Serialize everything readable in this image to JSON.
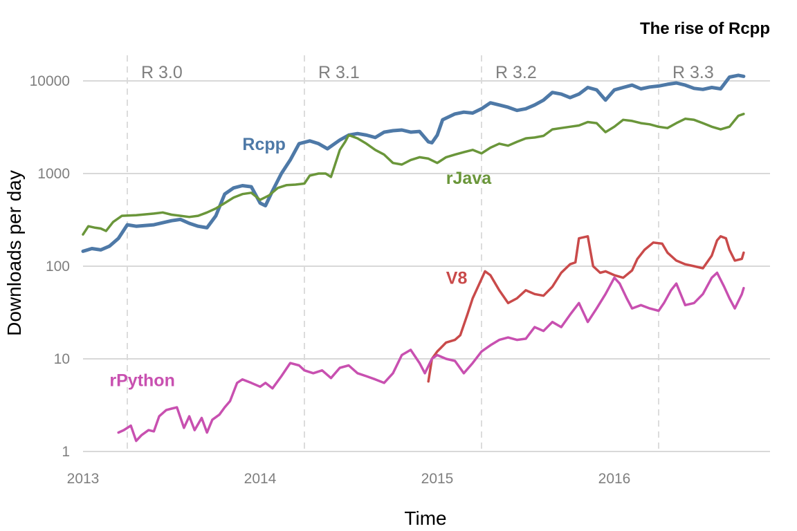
{
  "chart_data": {
    "type": "line",
    "title": "The rise of Rcpp",
    "xlabel": "Time",
    "ylabel": "Downloads per day",
    "y_scale": "log10",
    "ylim": [
      1,
      14000
    ],
    "xlim": [
      2013.0,
      2016.73
    ],
    "y_ticks": [
      {
        "value": 1,
        "label": "1"
      },
      {
        "value": 10,
        "label": "10"
      },
      {
        "value": 100,
        "label": "100"
      },
      {
        "value": 1000,
        "label": "1000"
      },
      {
        "value": 10000,
        "label": "10000"
      }
    ],
    "x_ticks": [
      {
        "value": 2013,
        "label": "2013"
      },
      {
        "value": 2014,
        "label": "2014"
      },
      {
        "value": 2015,
        "label": "2015"
      },
      {
        "value": 2016,
        "label": "2016"
      }
    ],
    "releases": [
      {
        "x": 2013.25,
        "label": "R 3.0"
      },
      {
        "x": 2014.25,
        "label": "R 3.1"
      },
      {
        "x": 2015.25,
        "label": "R 3.2"
      },
      {
        "x": 2016.25,
        "label": "R 3.3"
      }
    ],
    "series": [
      {
        "name": "Rcpp",
        "color": "#4e79a7",
        "width": 5,
        "label_at": {
          "x": 2013.9,
          "y": 2100
        },
        "points": [
          [
            2013.0,
            145
          ],
          [
            2013.05,
            155
          ],
          [
            2013.1,
            150
          ],
          [
            2013.15,
            165
          ],
          [
            2013.2,
            200
          ],
          [
            2013.25,
            280
          ],
          [
            2013.3,
            270
          ],
          [
            2013.4,
            280
          ],
          [
            2013.5,
            310
          ],
          [
            2013.55,
            320
          ],
          [
            2013.6,
            290
          ],
          [
            2013.65,
            270
          ],
          [
            2013.7,
            260
          ],
          [
            2013.75,
            350
          ],
          [
            2013.8,
            600
          ],
          [
            2013.85,
            700
          ],
          [
            2013.9,
            740
          ],
          [
            2013.95,
            720
          ],
          [
            2014.0,
            480
          ],
          [
            2014.03,
            450
          ],
          [
            2014.07,
            650
          ],
          [
            2014.12,
            1000
          ],
          [
            2014.17,
            1400
          ],
          [
            2014.22,
            2100
          ],
          [
            2014.28,
            2250
          ],
          [
            2014.33,
            2100
          ],
          [
            2014.38,
            1850
          ],
          [
            2014.45,
            2300
          ],
          [
            2014.5,
            2600
          ],
          [
            2014.55,
            2700
          ],
          [
            2014.6,
            2600
          ],
          [
            2014.65,
            2450
          ],
          [
            2014.7,
            2800
          ],
          [
            2014.75,
            2900
          ],
          [
            2014.8,
            2950
          ],
          [
            2014.85,
            2800
          ],
          [
            2014.9,
            2850
          ],
          [
            2014.95,
            2200
          ],
          [
            2014.97,
            2150
          ],
          [
            2015.0,
            2600
          ],
          [
            2015.03,
            3800
          ],
          [
            2015.1,
            4400
          ],
          [
            2015.15,
            4600
          ],
          [
            2015.2,
            4500
          ],
          [
            2015.25,
            5000
          ],
          [
            2015.3,
            5800
          ],
          [
            2015.35,
            5500
          ],
          [
            2015.4,
            5200
          ],
          [
            2015.45,
            4800
          ],
          [
            2015.5,
            5000
          ],
          [
            2015.55,
            5500
          ],
          [
            2015.6,
            6200
          ],
          [
            2015.65,
            7500
          ],
          [
            2015.7,
            7200
          ],
          [
            2015.75,
            6600
          ],
          [
            2015.8,
            7200
          ],
          [
            2015.85,
            8500
          ],
          [
            2015.9,
            8000
          ],
          [
            2015.95,
            6200
          ],
          [
            2016.0,
            8000
          ],
          [
            2016.05,
            8500
          ],
          [
            2016.1,
            9000
          ],
          [
            2016.15,
            8200
          ],
          [
            2016.2,
            8600
          ],
          [
            2016.25,
            8800
          ],
          [
            2016.3,
            9200
          ],
          [
            2016.35,
            9500
          ],
          [
            2016.4,
            9000
          ],
          [
            2016.45,
            8300
          ],
          [
            2016.5,
            8100
          ],
          [
            2016.55,
            8500
          ],
          [
            2016.6,
            8200
          ],
          [
            2016.65,
            11000
          ],
          [
            2016.7,
            11500
          ],
          [
            2016.73,
            11200
          ]
        ]
      },
      {
        "name": "rJava",
        "color": "#6a963a",
        "width": 3.5,
        "label_at": {
          "x": 2015.05,
          "y": 900
        },
        "points": [
          [
            2013.0,
            220
          ],
          [
            2013.03,
            270
          ],
          [
            2013.07,
            260
          ],
          [
            2013.1,
            255
          ],
          [
            2013.13,
            240
          ],
          [
            2013.17,
            300
          ],
          [
            2013.22,
            350
          ],
          [
            2013.3,
            355
          ],
          [
            2013.4,
            370
          ],
          [
            2013.45,
            380
          ],
          [
            2013.5,
            360
          ],
          [
            2013.55,
            350
          ],
          [
            2013.6,
            340
          ],
          [
            2013.65,
            350
          ],
          [
            2013.7,
            380
          ],
          [
            2013.75,
            420
          ],
          [
            2013.8,
            480
          ],
          [
            2013.85,
            550
          ],
          [
            2013.9,
            600
          ],
          [
            2013.95,
            620
          ],
          [
            2014.0,
            520
          ],
          [
            2014.05,
            580
          ],
          [
            2014.1,
            700
          ],
          [
            2014.15,
            750
          ],
          [
            2014.2,
            760
          ],
          [
            2014.25,
            780
          ],
          [
            2014.28,
            950
          ],
          [
            2014.33,
            1000
          ],
          [
            2014.37,
            1000
          ],
          [
            2014.4,
            920
          ],
          [
            2014.42,
            1200
          ],
          [
            2014.45,
            1800
          ],
          [
            2014.48,
            2200
          ],
          [
            2014.5,
            2600
          ],
          [
            2014.55,
            2400
          ],
          [
            2014.6,
            2100
          ],
          [
            2014.65,
            1800
          ],
          [
            2014.7,
            1600
          ],
          [
            2014.75,
            1300
          ],
          [
            2014.8,
            1250
          ],
          [
            2014.85,
            1400
          ],
          [
            2014.9,
            1500
          ],
          [
            2014.95,
            1450
          ],
          [
            2015.0,
            1300
          ],
          [
            2015.05,
            1500
          ],
          [
            2015.1,
            1600
          ],
          [
            2015.15,
            1700
          ],
          [
            2015.2,
            1800
          ],
          [
            2015.25,
            1650
          ],
          [
            2015.3,
            1900
          ],
          [
            2015.35,
            2100
          ],
          [
            2015.4,
            2000
          ],
          [
            2015.45,
            2200
          ],
          [
            2015.5,
            2400
          ],
          [
            2015.55,
            2450
          ],
          [
            2015.6,
            2550
          ],
          [
            2015.65,
            3000
          ],
          [
            2015.7,
            3100
          ],
          [
            2015.75,
            3200
          ],
          [
            2015.8,
            3300
          ],
          [
            2015.85,
            3600
          ],
          [
            2015.9,
            3500
          ],
          [
            2015.95,
            2800
          ],
          [
            2016.0,
            3200
          ],
          [
            2016.05,
            3800
          ],
          [
            2016.1,
            3700
          ],
          [
            2016.15,
            3500
          ],
          [
            2016.2,
            3400
          ],
          [
            2016.25,
            3200
          ],
          [
            2016.3,
            3100
          ],
          [
            2016.35,
            3500
          ],
          [
            2016.4,
            3900
          ],
          [
            2016.45,
            3800
          ],
          [
            2016.5,
            3500
          ],
          [
            2016.55,
            3200
          ],
          [
            2016.6,
            3000
          ],
          [
            2016.65,
            3200
          ],
          [
            2016.7,
            4200
          ],
          [
            2016.73,
            4400
          ]
        ]
      },
      {
        "name": "V8",
        "color": "#c94a4a",
        "width": 3.5,
        "label_at": {
          "x": 2015.05,
          "y": 75
        },
        "points": [
          [
            2014.95,
            5.7
          ],
          [
            2014.97,
            10
          ],
          [
            2015.0,
            12
          ],
          [
            2015.05,
            15
          ],
          [
            2015.1,
            16
          ],
          [
            2015.13,
            18
          ],
          [
            2015.17,
            30
          ],
          [
            2015.2,
            45
          ],
          [
            2015.23,
            60
          ],
          [
            2015.27,
            88
          ],
          [
            2015.3,
            80
          ],
          [
            2015.35,
            55
          ],
          [
            2015.4,
            40
          ],
          [
            2015.45,
            45
          ],
          [
            2015.5,
            55
          ],
          [
            2015.55,
            50
          ],
          [
            2015.6,
            48
          ],
          [
            2015.65,
            60
          ],
          [
            2015.7,
            85
          ],
          [
            2015.75,
            105
          ],
          [
            2015.78,
            110
          ],
          [
            2015.8,
            200
          ],
          [
            2015.85,
            210
          ],
          [
            2015.88,
            100
          ],
          [
            2015.92,
            85
          ],
          [
            2015.95,
            88
          ],
          [
            2016.0,
            80
          ],
          [
            2016.05,
            75
          ],
          [
            2016.1,
            90
          ],
          [
            2016.13,
            120
          ],
          [
            2016.17,
            150
          ],
          [
            2016.22,
            180
          ],
          [
            2016.27,
            175
          ],
          [
            2016.3,
            140
          ],
          [
            2016.35,
            115
          ],
          [
            2016.4,
            105
          ],
          [
            2016.45,
            100
          ],
          [
            2016.5,
            95
          ],
          [
            2016.55,
            130
          ],
          [
            2016.58,
            190
          ],
          [
            2016.6,
            210
          ],
          [
            2016.63,
            200
          ],
          [
            2016.65,
            150
          ],
          [
            2016.68,
            115
          ],
          [
            2016.72,
            120
          ],
          [
            2016.73,
            140
          ]
        ]
      },
      {
        "name": "rPython",
        "color": "#c850b0",
        "width": 3.5,
        "label_at": {
          "x": 2013.15,
          "y": 5.9
        },
        "points": [
          [
            2013.2,
            1.6
          ],
          [
            2013.23,
            1.7
          ],
          [
            2013.27,
            1.9
          ],
          [
            2013.3,
            1.3
          ],
          [
            2013.33,
            1.5
          ],
          [
            2013.37,
            1.7
          ],
          [
            2013.4,
            1.65
          ],
          [
            2013.43,
            2.4
          ],
          [
            2013.47,
            2.8
          ],
          [
            2013.5,
            2.9
          ],
          [
            2013.53,
            3.0
          ],
          [
            2013.57,
            1.8
          ],
          [
            2013.6,
            2.4
          ],
          [
            2013.63,
            1.7
          ],
          [
            2013.67,
            2.3
          ],
          [
            2013.7,
            1.6
          ],
          [
            2013.73,
            2.2
          ],
          [
            2013.77,
            2.5
          ],
          [
            2013.8,
            3.0
          ],
          [
            2013.83,
            3.5
          ],
          [
            2013.87,
            5.5
          ],
          [
            2013.9,
            6.0
          ],
          [
            2013.95,
            5.5
          ],
          [
            2014.0,
            5.0
          ],
          [
            2014.03,
            5.5
          ],
          [
            2014.07,
            4.8
          ],
          [
            2014.12,
            6.5
          ],
          [
            2014.17,
            9.0
          ],
          [
            2014.22,
            8.5
          ],
          [
            2014.25,
            7.5
          ],
          [
            2014.3,
            7.0
          ],
          [
            2014.35,
            7.5
          ],
          [
            2014.4,
            6.2
          ],
          [
            2014.45,
            8.0
          ],
          [
            2014.5,
            8.5
          ],
          [
            2014.55,
            7.0
          ],
          [
            2014.6,
            6.5
          ],
          [
            2014.65,
            6.0
          ],
          [
            2014.7,
            5.5
          ],
          [
            2014.75,
            7.0
          ],
          [
            2014.8,
            11.0
          ],
          [
            2014.85,
            12.5
          ],
          [
            2014.9,
            9.0
          ],
          [
            2014.93,
            7.0
          ],
          [
            2014.97,
            10.0
          ],
          [
            2015.0,
            11.0
          ],
          [
            2015.05,
            10.0
          ],
          [
            2015.1,
            9.5
          ],
          [
            2015.15,
            7.0
          ],
          [
            2015.2,
            9.0
          ],
          [
            2015.25,
            12.0
          ],
          [
            2015.3,
            14.0
          ],
          [
            2015.35,
            16.0
          ],
          [
            2015.4,
            17.0
          ],
          [
            2015.45,
            16.0
          ],
          [
            2015.5,
            16.5
          ],
          [
            2015.55,
            22.0
          ],
          [
            2015.6,
            20.0
          ],
          [
            2015.65,
            25.0
          ],
          [
            2015.7,
            22.0
          ],
          [
            2015.75,
            30.0
          ],
          [
            2015.8,
            40.0
          ],
          [
            2015.85,
            25.0
          ],
          [
            2015.9,
            35.0
          ],
          [
            2015.95,
            50.0
          ],
          [
            2016.0,
            75.0
          ],
          [
            2016.03,
            65.0
          ],
          [
            2016.07,
            45.0
          ],
          [
            2016.1,
            35.0
          ],
          [
            2016.15,
            38.0
          ],
          [
            2016.2,
            35.0
          ],
          [
            2016.25,
            33.0
          ],
          [
            2016.28,
            40.0
          ],
          [
            2016.32,
            55.0
          ],
          [
            2016.35,
            65.0
          ],
          [
            2016.4,
            38.0
          ],
          [
            2016.45,
            40.0
          ],
          [
            2016.5,
            50.0
          ],
          [
            2016.55,
            75.0
          ],
          [
            2016.58,
            85.0
          ],
          [
            2016.62,
            60.0
          ],
          [
            2016.65,
            45.0
          ],
          [
            2016.68,
            35.0
          ],
          [
            2016.72,
            50.0
          ],
          [
            2016.73,
            58.0
          ]
        ]
      }
    ]
  }
}
